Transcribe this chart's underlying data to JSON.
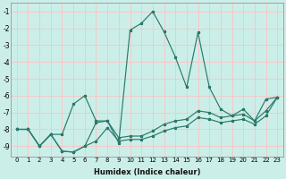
{
  "xlabel": "Humidex (Indice chaleur)",
  "background_color": "#cceee8",
  "grid_color": "#f5c8c8",
  "line_color": "#2a7a6a",
  "xlim": [
    -0.5,
    23.5
  ],
  "ylim": [
    -9.6,
    -0.5
  ],
  "xticks": [
    0,
    1,
    2,
    3,
    4,
    5,
    6,
    7,
    8,
    9,
    10,
    11,
    12,
    13,
    14,
    15,
    16,
    17,
    18,
    19,
    20,
    21,
    22,
    23
  ],
  "yticks": [
    -1,
    -2,
    -3,
    -4,
    -5,
    -6,
    -7,
    -8,
    -9
  ],
  "series_main_x": [
    0,
    1,
    2,
    3,
    4,
    5,
    6,
    7,
    8,
    9,
    10,
    11,
    12,
    13,
    14,
    15,
    16,
    17,
    18,
    19,
    20,
    21,
    22,
    23
  ],
  "series_main_y": [
    -8.0,
    -8.0,
    -9.0,
    -8.3,
    -8.3,
    -6.5,
    -6.0,
    -7.5,
    -7.5,
    -8.8,
    -2.1,
    -1.7,
    -1.0,
    -2.2,
    -3.7,
    -5.5,
    -2.25,
    -5.5,
    -6.8,
    -7.2,
    -6.8,
    -7.5,
    -6.2,
    -6.1
  ],
  "series_flat1_x": [
    0,
    1,
    2,
    3,
    4,
    5,
    6,
    7,
    8,
    9,
    10,
    11,
    12,
    13,
    14,
    15,
    16,
    17,
    18,
    19,
    20,
    21,
    22,
    23
  ],
  "series_flat1_y": [
    -8.0,
    -8.0,
    -9.0,
    -8.3,
    -9.3,
    -9.35,
    -9.0,
    -7.6,
    -7.5,
    -8.5,
    -8.4,
    -8.4,
    -8.1,
    -7.7,
    -7.5,
    -7.4,
    -6.9,
    -7.0,
    -7.3,
    -7.2,
    -7.1,
    -7.5,
    -6.9,
    -6.1
  ],
  "series_flat2_x": [
    0,
    1,
    2,
    3,
    4,
    5,
    6,
    7,
    8,
    9,
    10,
    11,
    12,
    13,
    14,
    15,
    16,
    17,
    18,
    19,
    20,
    21,
    22,
    23
  ],
  "series_flat2_y": [
    -8.0,
    -8.0,
    -9.0,
    -8.3,
    -9.3,
    -9.35,
    -9.0,
    -8.7,
    -7.9,
    -8.7,
    -8.6,
    -8.6,
    -8.4,
    -8.1,
    -7.9,
    -7.8,
    -7.3,
    -7.4,
    -7.6,
    -7.5,
    -7.4,
    -7.7,
    -7.2,
    -6.1
  ]
}
